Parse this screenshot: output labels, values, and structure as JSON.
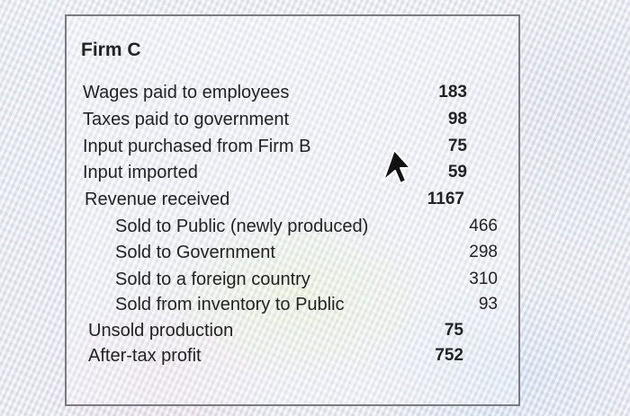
{
  "title": "Firm C",
  "rows": [
    {
      "label": "Wages paid to employees",
      "value": "183"
    },
    {
      "label": "Taxes paid to government",
      "value": "98"
    },
    {
      "label": "Input purchased from Firm B",
      "value": "75"
    },
    {
      "label": "Input imported",
      "value": "59"
    },
    {
      "label": "Revenue received",
      "value": "1167"
    },
    {
      "label": "Sold to Public (newly produced)",
      "value": "466"
    },
    {
      "label": "Sold to Government",
      "value": "298"
    },
    {
      "label": "Sold to a foreign country",
      "value": "310"
    },
    {
      "label": "Sold from inventory to Public",
      "value": "93"
    },
    {
      "label": "Unsold production",
      "value": "75"
    },
    {
      "label": "After-tax profit",
      "value": "752"
    }
  ],
  "icons": {
    "cursor": "mouse-pointer-icon"
  }
}
